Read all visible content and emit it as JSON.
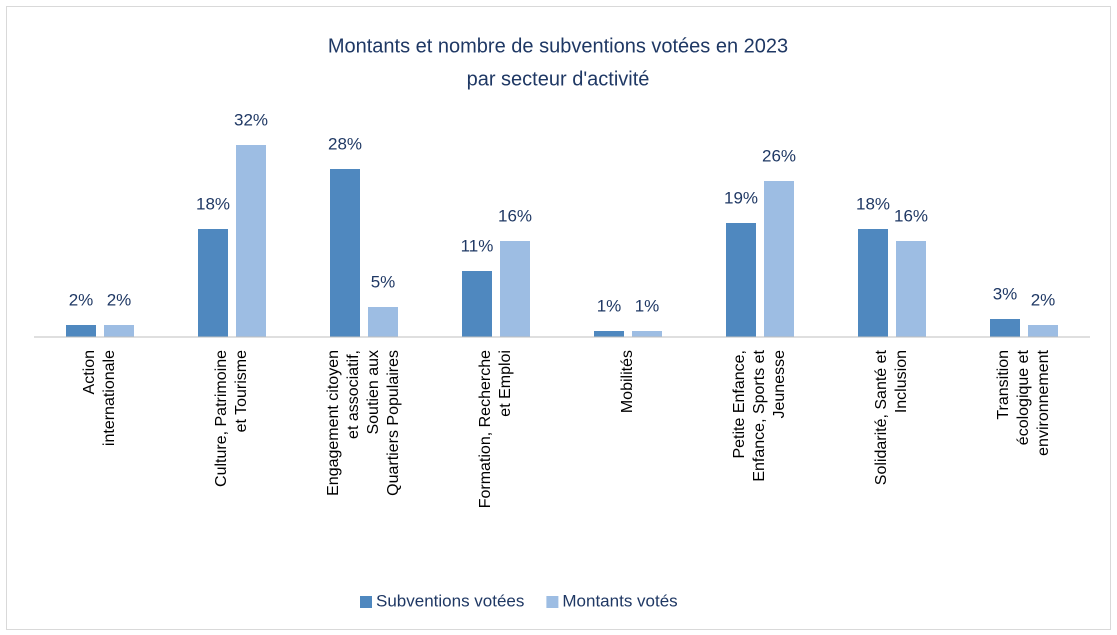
{
  "chart_data": {
    "type": "bar",
    "title": "Montants et nombre de subventions votées en 2023",
    "subtitle": "par secteur d'activité",
    "categories": [
      "Action internationale",
      "Culture, Patrimoine et Tourisme",
      "Engagement citoyen et associatif, Soutien aux Quartiers Populaires",
      "Formation, Recherche et Emploi",
      "Mobilités",
      "Petite Enfance, Enfance, Sports et Jeunesse",
      "Solidarité, Santé et Inclusion",
      "Transition écologique et environnement"
    ],
    "series": [
      {
        "name": "Subventions votées",
        "color": "#4f88bf",
        "values": [
          2,
          18,
          28,
          11,
          1,
          19,
          18,
          3
        ],
        "value_labels": [
          "2%",
          "18%",
          "28%",
          "11%",
          "1%",
          "19%",
          "18%",
          "3%"
        ]
      },
      {
        "name": "Montants votés",
        "color": "#9dbde3",
        "values": [
          2,
          32,
          5,
          16,
          1,
          26,
          16,
          2
        ],
        "value_labels": [
          "2%",
          "32%",
          "5%",
          "16%",
          "1%",
          "26%",
          "16%",
          "2%"
        ]
      }
    ],
    "ylim": [
      0,
      35
    ],
    "legend": "bottom"
  }
}
